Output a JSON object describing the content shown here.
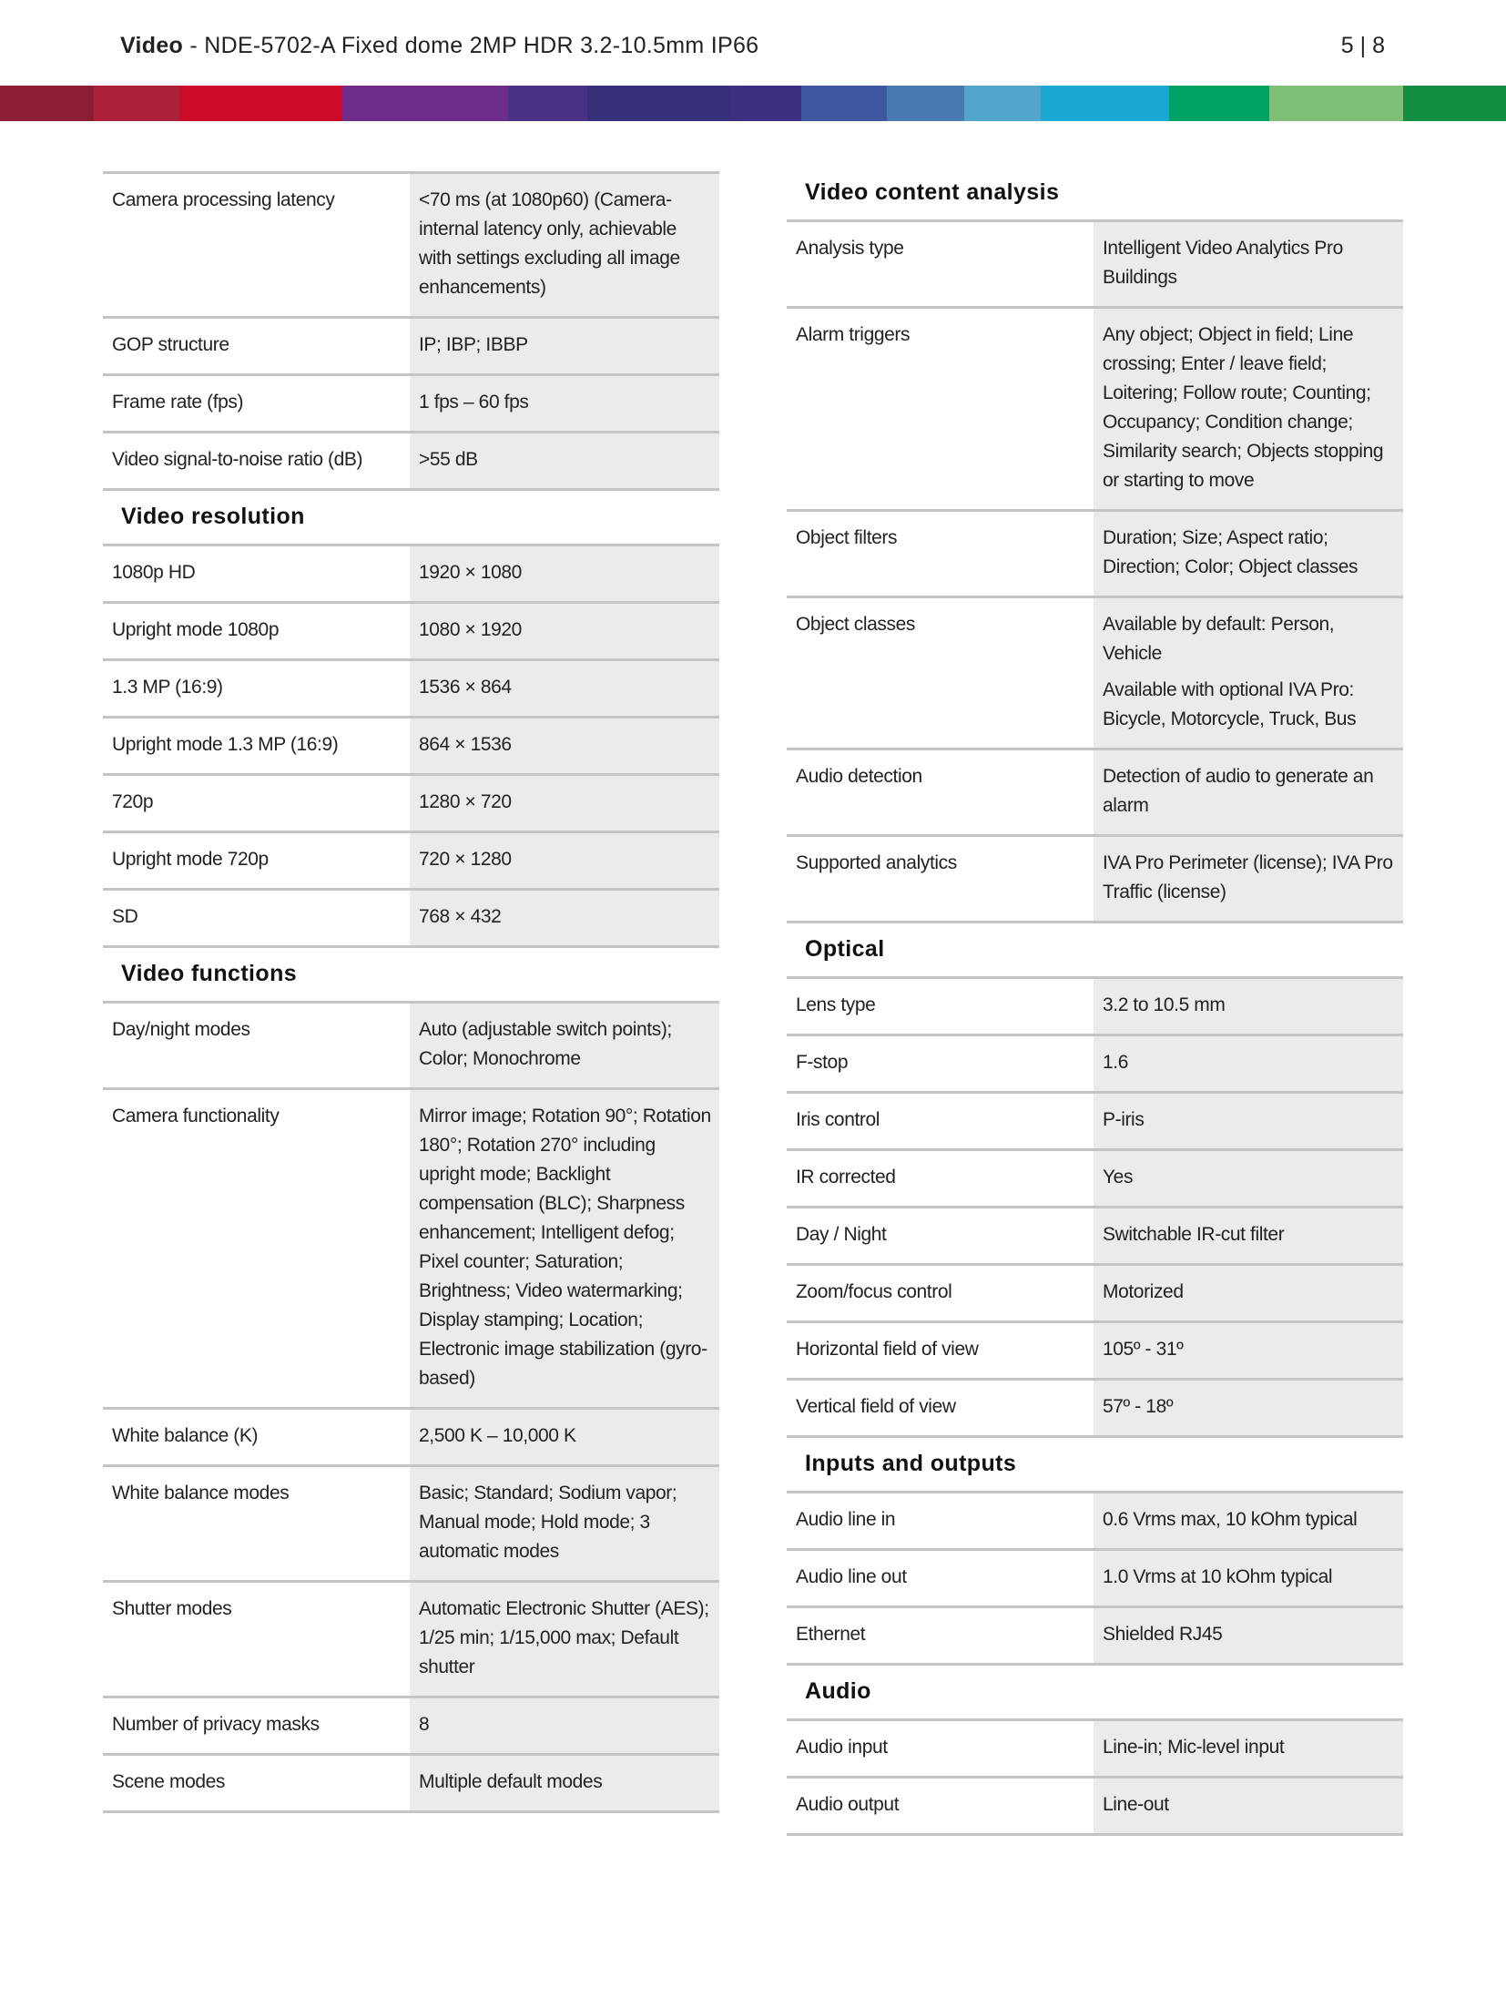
{
  "header": {
    "title_bold": "Video",
    "title_rest": " - NDE-5702-A Fixed dome 2MP HDR 3.2-10.5mm IP66",
    "page": "5 | 8"
  },
  "brand_bar_colors": [
    "#8c1d33",
    "#ad2239",
    "#cc0a2a",
    "#6e2c8a",
    "#4a3386",
    "#36307a",
    "#3d2f82",
    "#3d589f",
    "#4a7bb0",
    "#52a6cb",
    "#19a9d3",
    "#00a264",
    "#80bf77",
    "#128f40"
  ],
  "left": [
    {
      "title": "",
      "rows": [
        {
          "label": "Camera processing latency",
          "value": [
            "<70 ms (at 1080p60) (Camera-internal latency only, achievable with settings excluding all image enhancements)"
          ]
        },
        {
          "label": "GOP structure",
          "value": [
            "IP; IBP; IBBP"
          ]
        },
        {
          "label": "Frame rate (fps)",
          "value": [
            "1 fps – 60 fps"
          ]
        },
        {
          "label": "Video signal-to-noise ratio (dB)",
          "value": [
            ">55 dB"
          ]
        }
      ]
    },
    {
      "title": "Video resolution",
      "rows": [
        {
          "label": "1080p HD",
          "value": [
            "1920 × 1080"
          ]
        },
        {
          "label": "Upright mode 1080p",
          "value": [
            "1080 × 1920"
          ]
        },
        {
          "label": "1.3 MP (16:9)",
          "value": [
            "1536 × 864"
          ]
        },
        {
          "label": "Upright mode 1.3 MP (16:9)",
          "value": [
            "864 × 1536"
          ]
        },
        {
          "label": "720p",
          "value": [
            "1280 × 720"
          ]
        },
        {
          "label": "Upright mode 720p",
          "value": [
            "720 × 1280"
          ]
        },
        {
          "label": "SD",
          "value": [
            "768 × 432"
          ]
        }
      ]
    },
    {
      "title": "Video functions",
      "rows": [
        {
          "label": "Day/night modes",
          "value": [
            "Auto (adjustable switch points); Color; Monochrome"
          ]
        },
        {
          "label": "Camera functionality",
          "value": [
            "Mirror image; Rotation 90°; Rotation 180°; Rotation 270° including upright mode; Backlight compensation (BLC); Sharpness enhancement; Intelligent defog; Pixel counter; Saturation; Brightness; Video watermarking; Display stamping; Location; Electronic image stabilization (gyro-based)"
          ]
        },
        {
          "label": "White balance (K)",
          "value": [
            "2,500 K – 10,000 K"
          ]
        },
        {
          "label": "White balance modes",
          "value": [
            "Basic; Standard; Sodium vapor; Manual mode; Hold mode; 3 automatic modes"
          ]
        },
        {
          "label": "Shutter modes",
          "value": [
            "Automatic Electronic Shutter (AES); 1/25 min; 1/15,000 max; Default shutter"
          ]
        },
        {
          "label": "Number of privacy masks",
          "value": [
            "8"
          ]
        },
        {
          "label": "Scene modes",
          "value": [
            "Multiple default modes"
          ]
        }
      ]
    }
  ],
  "right": [
    {
      "title": "Video content analysis",
      "rows": [
        {
          "label": "Analysis type",
          "value": [
            "Intelligent Video Analytics Pro Buildings"
          ]
        },
        {
          "label": "Alarm triggers",
          "value": [
            "Any object; Object in field; Line crossing; Enter / leave field; Loitering; Follow route; Counting; Occupancy; Condition change; Similarity search; Objects stopping or starting to move"
          ]
        },
        {
          "label": "Object filters",
          "value": [
            "Duration; Size; Aspect ratio; Direction; Color; Object classes"
          ]
        },
        {
          "label": "Object classes",
          "value": [
            "Available by default: Person, Vehicle",
            "Available with optional IVA Pro: Bicycle, Motorcycle, Truck, Bus"
          ]
        },
        {
          "label": "Audio detection",
          "value": [
            "Detection of audio to generate an alarm"
          ]
        },
        {
          "label": "Supported analytics",
          "value": [
            "IVA Pro Perimeter (license); IVA Pro Traffic (license)"
          ]
        }
      ]
    },
    {
      "title": "Optical",
      "rows": [
        {
          "label": "Lens type",
          "value": [
            "3.2 to 10.5 mm"
          ]
        },
        {
          "label": "F-stop",
          "value": [
            "1.6"
          ]
        },
        {
          "label": "Iris control",
          "value": [
            "P-iris"
          ]
        },
        {
          "label": "IR corrected",
          "value": [
            "Yes"
          ]
        },
        {
          "label": "Day / Night",
          "value": [
            "Switchable IR-cut filter"
          ]
        },
        {
          "label": "Zoom/focus control",
          "value": [
            "Motorized"
          ]
        },
        {
          "label": "Horizontal field of view",
          "value": [
            "105º - 31º"
          ]
        },
        {
          "label": "Vertical field of view",
          "value": [
            "57º - 18º"
          ]
        }
      ]
    },
    {
      "title": "Inputs and outputs",
      "rows": [
        {
          "label": "Audio line in",
          "value": [
            "0.6 Vrms max, 10 kOhm typical"
          ]
        },
        {
          "label": "Audio line out",
          "value": [
            "1.0 Vrms at 10 kOhm typical"
          ]
        },
        {
          "label": "Ethernet",
          "value": [
            "Shielded RJ45"
          ]
        }
      ]
    },
    {
      "title": "Audio",
      "rows": [
        {
          "label": "Audio input",
          "value": [
            "Line-in; Mic-level input"
          ]
        },
        {
          "label": "Audio output",
          "value": [
            "Line-out"
          ]
        }
      ]
    }
  ]
}
